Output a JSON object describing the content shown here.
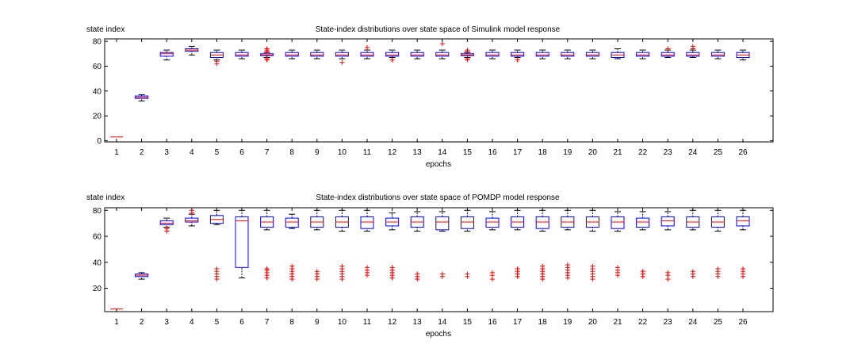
{
  "chart_data": [
    {
      "type": "box",
      "title": "State-index distributions over state space of Simulink model response",
      "xlabel": "epochs",
      "ylabel": "state index",
      "categories": [
        "1",
        "2",
        "3",
        "4",
        "5",
        "6",
        "7",
        "8",
        "9",
        "10",
        "11",
        "12",
        "13",
        "14",
        "15",
        "16",
        "17",
        "18",
        "19",
        "20",
        "21",
        "22",
        "23",
        "24",
        "25",
        "26"
      ],
      "ylim": [
        -1,
        82
      ],
      "yticks": [
        0,
        20,
        40,
        60,
        80
      ],
      "grid": false,
      "colors": {
        "box": "#0000ff",
        "median": "#ff0000",
        "whisker": "#000000",
        "outlier": "#ff0000"
      },
      "boxes": [
        {
          "q1": 3,
          "median": 3,
          "q3": 3,
          "lo": 3,
          "hi": 3,
          "outliers": []
        },
        {
          "q1": 34,
          "median": 35,
          "q3": 36,
          "lo": 32,
          "hi": 37,
          "outliers": []
        },
        {
          "q1": 68,
          "median": 70,
          "q3": 71,
          "lo": 65,
          "hi": 73,
          "outliers": []
        },
        {
          "q1": 72,
          "median": 73,
          "q3": 74,
          "lo": 69,
          "hi": 76,
          "outliers": []
        },
        {
          "q1": 67,
          "median": 69,
          "q3": 71,
          "lo": 65,
          "hi": 73,
          "outliers": [
            62,
            64
          ]
        },
        {
          "q1": 68,
          "median": 69,
          "q3": 71,
          "lo": 66,
          "hi": 73,
          "outliers": []
        },
        {
          "q1": 68.5,
          "median": 69,
          "q3": 70,
          "lo": 67,
          "hi": 71,
          "outliers": [
            65,
            66,
            72,
            73,
            74
          ]
        },
        {
          "q1": 68,
          "median": 69,
          "q3": 71,
          "lo": 66,
          "hi": 73,
          "outliers": []
        },
        {
          "q1": 68,
          "median": 69,
          "q3": 71,
          "lo": 66,
          "hi": 73,
          "outliers": []
        },
        {
          "q1": 68,
          "median": 69,
          "q3": 71,
          "lo": 66,
          "hi": 73,
          "outliers": [
            63
          ]
        },
        {
          "q1": 68,
          "median": 69,
          "q3": 71,
          "lo": 66,
          "hi": 73,
          "outliers": [
            75
          ]
        },
        {
          "q1": 68,
          "median": 69,
          "q3": 71,
          "lo": 67,
          "hi": 73,
          "outliers": [
            65
          ]
        },
        {
          "q1": 68,
          "median": 69,
          "q3": 71,
          "lo": 66,
          "hi": 73,
          "outliers": []
        },
        {
          "q1": 68,
          "median": 69,
          "q3": 71,
          "lo": 66,
          "hi": 73,
          "outliers": [
            78
          ]
        },
        {
          "q1": 68.5,
          "median": 69,
          "q3": 70,
          "lo": 67,
          "hi": 71,
          "outliers": [
            65,
            66,
            72,
            73
          ]
        },
        {
          "q1": 68,
          "median": 69,
          "q3": 71,
          "lo": 66,
          "hi": 73,
          "outliers": []
        },
        {
          "q1": 68,
          "median": 69,
          "q3": 71,
          "lo": 67,
          "hi": 73,
          "outliers": [
            65
          ]
        },
        {
          "q1": 68,
          "median": 69,
          "q3": 71,
          "lo": 66,
          "hi": 73,
          "outliers": []
        },
        {
          "q1": 68,
          "median": 69,
          "q3": 71,
          "lo": 66,
          "hi": 73,
          "outliers": []
        },
        {
          "q1": 68,
          "median": 69,
          "q3": 71,
          "lo": 66,
          "hi": 73,
          "outliers": []
        },
        {
          "q1": 67,
          "median": 69,
          "q3": 71,
          "lo": 66,
          "hi": 74,
          "outliers": []
        },
        {
          "q1": 68,
          "median": 69,
          "q3": 71,
          "lo": 66,
          "hi": 73,
          "outliers": []
        },
        {
          "q1": 68,
          "median": 69,
          "q3": 71,
          "lo": 67,
          "hi": 73,
          "outliers": [
            74
          ]
        },
        {
          "q1": 68,
          "median": 69,
          "q3": 71,
          "lo": 67,
          "hi": 73,
          "outliers": [
            74,
            76
          ]
        },
        {
          "q1": 68,
          "median": 69,
          "q3": 71,
          "lo": 66,
          "hi": 73,
          "outliers": []
        },
        {
          "q1": 67,
          "median": 69,
          "q3": 71,
          "lo": 65,
          "hi": 73,
          "outliers": []
        }
      ]
    },
    {
      "type": "box",
      "title": "State-index distributions over state space of POMDP model response",
      "xlabel": "epochs",
      "ylabel": "state index",
      "categories": [
        "1",
        "2",
        "3",
        "4",
        "5",
        "6",
        "7",
        "8",
        "9",
        "10",
        "11",
        "12",
        "13",
        "14",
        "15",
        "16",
        "17",
        "18",
        "19",
        "20",
        "21",
        "22",
        "23",
        "24",
        "25",
        "26"
      ],
      "ylim": [
        2,
        82
      ],
      "yticks": [
        20,
        40,
        60,
        80
      ],
      "grid": false,
      "colors": {
        "box": "#0000ff",
        "median": "#ff0000",
        "whisker": "#000000",
        "outlier": "#ff0000"
      },
      "boxes": [
        {
          "q1": 4,
          "median": 4,
          "q3": 4,
          "lo": 4,
          "hi": 4,
          "outliers": []
        },
        {
          "q1": 29,
          "median": 30,
          "q3": 31,
          "lo": 27,
          "hi": 32,
          "outliers": []
        },
        {
          "q1": 69,
          "median": 70,
          "q3": 72,
          "lo": 67,
          "hi": 74,
          "outliers": [
            64,
            66
          ]
        },
        {
          "q1": 71,
          "median": 72,
          "q3": 74,
          "lo": 68,
          "hi": 77,
          "outliers": [
            78,
            80
          ]
        },
        {
          "q1": 70,
          "median": 73,
          "q3": 76,
          "lo": 69,
          "hi": 80,
          "outliers": [
            27,
            29,
            31,
            33,
            35
          ]
        },
        {
          "q1": 36,
          "median": 72,
          "q3": 75,
          "lo": 28,
          "hi": 80,
          "outliers": []
        },
        {
          "q1": 67,
          "median": 71,
          "q3": 75,
          "lo": 65,
          "hi": 80,
          "outliers": [
            28,
            30,
            32,
            34,
            35
          ]
        },
        {
          "q1": 67,
          "median": 71,
          "q3": 74,
          "lo": 66,
          "hi": 77,
          "outliers": [
            27,
            29,
            31,
            33,
            35,
            37
          ]
        },
        {
          "q1": 67,
          "median": 71,
          "q3": 75,
          "lo": 65,
          "hi": 80,
          "outliers": [
            27,
            29,
            31,
            33
          ]
        },
        {
          "q1": 67,
          "median": 71,
          "q3": 75,
          "lo": 64,
          "hi": 80,
          "outliers": [
            27,
            29,
            31,
            33,
            35,
            37
          ]
        },
        {
          "q1": 66,
          "median": 71,
          "q3": 75,
          "lo": 64,
          "hi": 80,
          "outliers": [
            30,
            32,
            34,
            36
          ]
        },
        {
          "q1": 68,
          "median": 71,
          "q3": 74,
          "lo": 65,
          "hi": 78,
          "outliers": [
            28,
            30,
            32,
            34,
            36
          ]
        },
        {
          "q1": 67,
          "median": 71,
          "q3": 75,
          "lo": 64,
          "hi": 79,
          "outliers": [
            27,
            29,
            31
          ]
        },
        {
          "q1": 65,
          "median": 71,
          "q3": 75,
          "lo": 64,
          "hi": 79,
          "outliers": [
            29,
            31
          ]
        },
        {
          "q1": 66,
          "median": 71,
          "q3": 75,
          "lo": 64,
          "hi": 80,
          "outliers": [
            29,
            31
          ]
        },
        {
          "q1": 67,
          "median": 71,
          "q3": 74,
          "lo": 65,
          "hi": 79,
          "outliers": [
            27,
            30,
            32
          ]
        },
        {
          "q1": 67,
          "median": 71,
          "q3": 75,
          "lo": 65,
          "hi": 80,
          "outliers": [
            29,
            31,
            33,
            35
          ]
        },
        {
          "q1": 66,
          "median": 71,
          "q3": 75,
          "lo": 64,
          "hi": 80,
          "outliers": [
            27,
            29,
            31,
            33,
            35,
            37
          ]
        },
        {
          "q1": 67,
          "median": 71,
          "q3": 75,
          "lo": 65,
          "hi": 80,
          "outliers": [
            28,
            30,
            32,
            34,
            36,
            38
          ]
        },
        {
          "q1": 67,
          "median": 71,
          "q3": 75,
          "lo": 64,
          "hi": 80,
          "outliers": [
            27,
            29,
            31,
            33,
            35,
            37
          ]
        },
        {
          "q1": 66,
          "median": 71,
          "q3": 75,
          "lo": 64,
          "hi": 79,
          "outliers": [
            30,
            32,
            34,
            36
          ]
        },
        {
          "q1": 67,
          "median": 71,
          "q3": 74,
          "lo": 65,
          "hi": 79,
          "outliers": [
            29,
            31,
            33
          ]
        },
        {
          "q1": 68,
          "median": 72,
          "q3": 75,
          "lo": 65,
          "hi": 79,
          "outliers": [
            27,
            30,
            32
          ]
        },
        {
          "q1": 67,
          "median": 71,
          "q3": 75,
          "lo": 65,
          "hi": 80,
          "outliers": [
            29,
            31,
            33
          ]
        },
        {
          "q1": 67,
          "median": 71,
          "q3": 75,
          "lo": 64,
          "hi": 80,
          "outliers": [
            29,
            31,
            33,
            35
          ]
        },
        {
          "q1": 68,
          "median": 72,
          "q3": 75,
          "lo": 65,
          "hi": 80,
          "outliers": [
            29,
            31,
            33,
            35
          ]
        }
      ]
    }
  ]
}
